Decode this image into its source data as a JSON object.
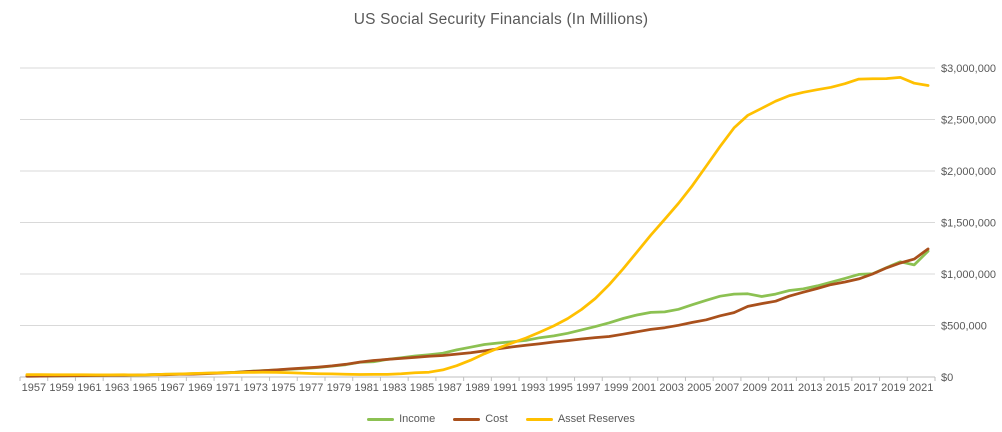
{
  "title": "US Social Security Financials (In Millions)",
  "legend": {
    "position": "bottom"
  },
  "colors": {
    "grid": "#D9D9D9",
    "axis": "#BFBFBF",
    "tick_text": "#595959",
    "title_text": "#595959"
  },
  "chart_data": {
    "type": "line",
    "title": "US Social Security Financials (In Millions)",
    "xlabel": "",
    "ylabel": "",
    "ylim": [
      0,
      3000000
    ],
    "grid": "horizontal",
    "legend_position": "bottom",
    "y_axis_side": "right",
    "y_ticks": [
      "$0",
      "$500,000",
      "$1,000,000",
      "$1,500,000",
      "$2,000,000",
      "$2,500,000",
      "$3,000,000"
    ],
    "x_tick_labels": [
      "1957",
      "1959",
      "1961",
      "1963",
      "1965",
      "1967",
      "1969",
      "1971",
      "1973",
      "1975",
      "1977",
      "1979",
      "1981",
      "1983",
      "1985",
      "1987",
      "1989",
      "1991",
      "1993",
      "1995",
      "1997",
      "1999",
      "2001",
      "2003",
      "2005",
      "2007",
      "2009",
      "2011",
      "2013",
      "2015",
      "2017",
      "2019",
      "2021"
    ],
    "x": [
      1957,
      1958,
      1959,
      1960,
      1961,
      1962,
      1963,
      1964,
      1965,
      1966,
      1967,
      1968,
      1969,
      1970,
      1971,
      1972,
      1973,
      1974,
      1975,
      1976,
      1977,
      1978,
      1979,
      1980,
      1981,
      1982,
      1983,
      1984,
      1985,
      1986,
      1987,
      1988,
      1989,
      1990,
      1991,
      1992,
      1993,
      1994,
      1995,
      1996,
      1997,
      1998,
      1999,
      2000,
      2001,
      2002,
      2003,
      2004,
      2005,
      2006,
      2007,
      2008,
      2009,
      2010,
      2011,
      2012,
      2013,
      2014,
      2015,
      2016,
      2017,
      2018,
      2019,
      2020,
      2021,
      2022
    ],
    "series": [
      {
        "name": "Income",
        "color": "#8CC152",
        "values": [
          8090,
          9108,
          9516,
          12445,
          12937,
          13699,
          16227,
          17476,
          17857,
          23381,
          26413,
          28493,
          33346,
          36993,
          40908,
          45622,
          54787,
          62066,
          67640,
          75034,
          82843,
          91903,
          105864,
          119712,
          142438,
          147913,
          171266,
          186637,
          203540,
          216833,
          231039,
          263469,
          289448,
          315443,
          329676,
          342591,
          355578,
          381111,
          399497,
          424451,
          457668,
          489204,
          526582,
          568433,
          602003,
          627085,
          631886,
          657718,
          701758,
          744873,
          784889,
          805302,
          807500,
          781128,
          805057,
          840190,
          855021,
          884277,
          920157,
          957453,
          996570,
          1003361,
          1061791,
          1118076,
          1088248,
          1222077
        ]
      },
      {
        "name": "Cost",
        "color": "#A9501C",
        "values": [
          7507,
          8907,
          10555,
          11798,
          13388,
          14998,
          15963,
          16737,
          19187,
          20913,
          22471,
          26015,
          27892,
          33108,
          38542,
          43281,
          53148,
          60593,
          69184,
          78242,
          87492,
          96018,
          107320,
          123550,
          144352,
          160111,
          171177,
          180429,
          190628,
          201522,
          209093,
          222514,
          236242,
          253135,
          274205,
          291865,
          308766,
          323011,
          339815,
          353569,
          369108,
          382255,
          392908,
          415121,
          438916,
          461653,
          479086,
          501643,
          529938,
          555421,
          594501,
          625143,
          685801,
          712526,
          736083,
          785781,
          822927,
          859230,
          897131,
          922270,
          952490,
          1000173,
          1059297,
          1107238,
          1144513,
          1243705
        ]
      },
      {
        "name": "Asset Reserves",
        "color": "#FFC000",
        "values": [
          23039,
          23243,
          22007,
          22613,
          22162,
          20705,
          20715,
          21172,
          19841,
          22308,
          26250,
          28729,
          34182,
          38068,
          40434,
          42775,
          44414,
          45886,
          44342,
          41133,
          35861,
          31746,
          30291,
          26453,
          24539,
          24778,
          24867,
          31075,
          42163,
          46861,
          68807,
          109762,
          162968,
          225277,
          280747,
          331473,
          378285,
          436385,
          496068,
          566950,
          655510,
          762459,
          896133,
          1049445,
          1212533,
          1377965,
          1530764,
          1686839,
          1858660,
          2048112,
          2238500,
          2418658,
          2540348,
          2608950,
          2677923,
          2732334,
          2764431,
          2789476,
          2812502,
          2847687,
          2891767,
          2894971,
          2897448,
          2908286,
          2852030,
          2830387
        ]
      }
    ]
  }
}
